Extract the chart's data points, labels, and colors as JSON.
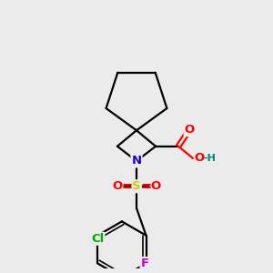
{
  "background_color": "#ebebeb",
  "figsize": [
    3.0,
    3.0
  ],
  "dpi": 100,
  "atom_colors": {
    "N": "#2200cc",
    "O": "#ff0000",
    "S": "#cccc00",
    "F": "#cc00cc",
    "Cl": "#00aa00",
    "C": "#000000",
    "H": "#008080"
  },
  "bond_color": "#000000",
  "bond_width": 1.6,
  "font_size_atoms": 9.5,
  "bg": "#ebebeb"
}
